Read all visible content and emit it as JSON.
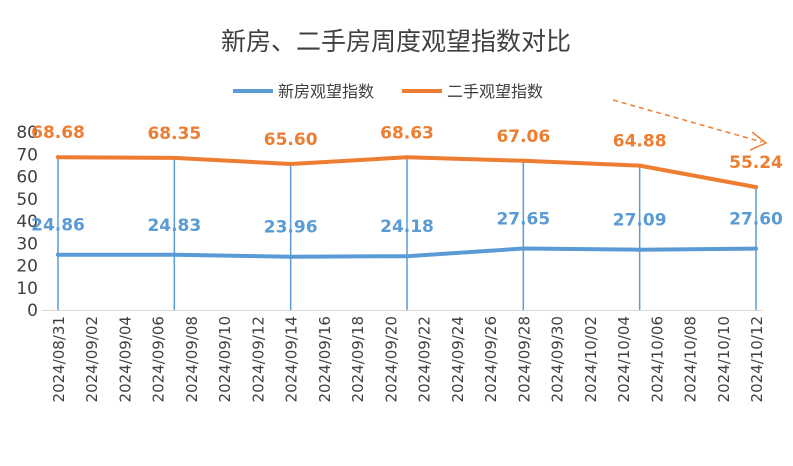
{
  "chart_data": {
    "type": "line",
    "title": "新房、二手房周度观望指数对比",
    "xlabel": "",
    "ylabel": "",
    "ylim": [
      0,
      80
    ],
    "yticks": [
      0,
      10,
      20,
      30,
      40,
      50,
      60,
      70,
      80
    ],
    "x_ticks": [
      "2024/08/31",
      "2024/09/02",
      "2024/09/04",
      "2024/09/06",
      "2024/09/08",
      "2024/09/10",
      "2024/09/12",
      "2024/09/14",
      "2024/09/16",
      "2024/09/18",
      "2024/09/20",
      "2024/09/22",
      "2024/09/24",
      "2024/09/26",
      "2024/09/28",
      "2024/09/30",
      "2024/10/02",
      "2024/10/04",
      "2024/10/06",
      "2024/10/08",
      "2024/10/10",
      "2024/10/12"
    ],
    "x": [
      "2024/08/31",
      "2024/09/07",
      "2024/09/14",
      "2024/09/21",
      "2024/09/28",
      "2024/10/05",
      "2024/10/12"
    ],
    "series": [
      {
        "name": "新房观望指数",
        "color": "#5b9bd5",
        "values": [
          24.86,
          24.83,
          23.96,
          24.18,
          27.65,
          27.09,
          27.6
        ],
        "labels": [
          "24.86",
          "24.83",
          "23.96",
          "24.18",
          "27.65",
          "27.09",
          "27.60"
        ]
      },
      {
        "name": "二手观望指数",
        "color": "#ed7d31",
        "values": [
          68.68,
          68.35,
          65.6,
          68.63,
          67.06,
          64.88,
          55.24
        ],
        "labels": [
          "68.68",
          "68.35",
          "65.60",
          "68.63",
          "67.06",
          "64.88",
          "55.24"
        ]
      }
    ],
    "legend": "top-center",
    "grid": false,
    "annotation": "dashed-downward-arrow"
  }
}
